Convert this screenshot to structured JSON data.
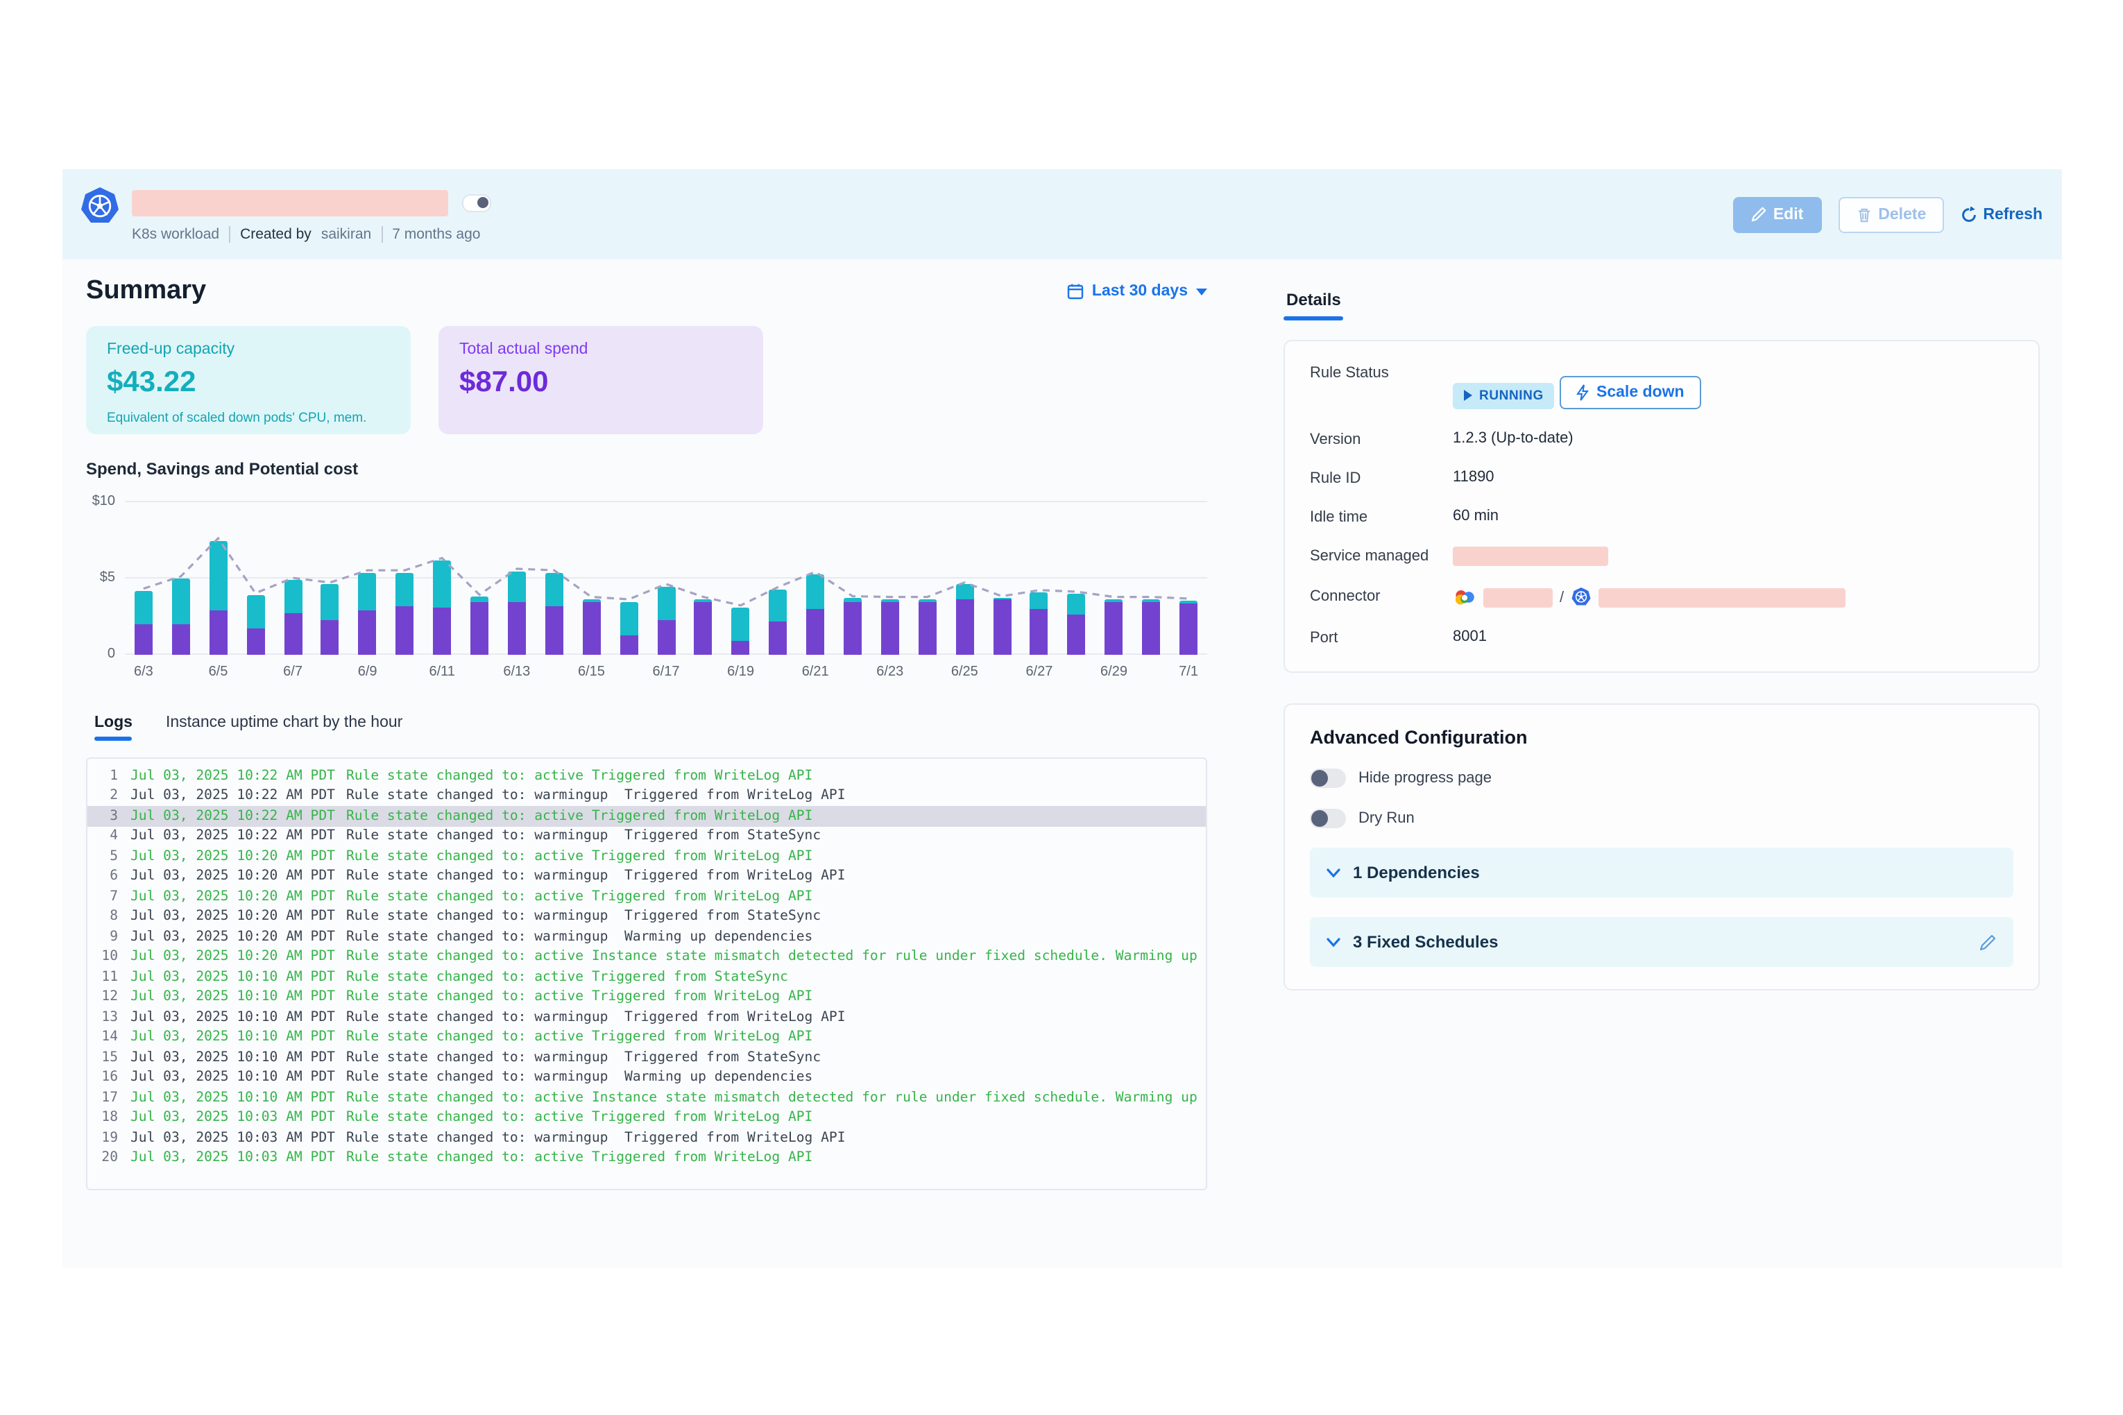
{
  "header": {
    "workload_type": "K8s workload",
    "created_by_label": "Created by",
    "created_by": "saikiran",
    "created_ago": "7 months ago",
    "edit_label": "Edit",
    "delete_label": "Delete",
    "refresh_label": "Refresh"
  },
  "summary": {
    "title": "Summary",
    "date_range": "Last 30 days",
    "cards": [
      {
        "label": "Freed-up capacity",
        "value": "$43.22",
        "caption": "Equivalent of scaled down pods' CPU, mem."
      },
      {
        "label": "Total actual spend",
        "value": "$87.00",
        "caption": ""
      }
    ]
  },
  "chart_data": {
    "type": "bar",
    "subtype": "stacked-bars-with-dashed-line",
    "title": "Spend, Savings and Potential cost",
    "ylabel": "",
    "xlabel": "",
    "ylim": [
      0,
      10
    ],
    "y_ticks": [
      "$10",
      "$5",
      "0"
    ],
    "x_tick_every": 2,
    "grid": true,
    "categories": [
      "6/3",
      "6/4",
      "6/5",
      "6/6",
      "6/7",
      "6/8",
      "6/9",
      "6/10",
      "6/11",
      "6/12",
      "6/13",
      "6/14",
      "6/15",
      "6/16",
      "6/17",
      "6/18",
      "6/19",
      "6/20",
      "6/21",
      "6/22",
      "6/23",
      "6/24",
      "6/25",
      "6/26",
      "6/27",
      "6/28",
      "6/29",
      "6/30",
      "7/1"
    ],
    "series": [
      {
        "name": "Spend",
        "color": "#7343D0",
        "values": [
          2.0,
          2.0,
          2.9,
          1.7,
          2.7,
          2.3,
          2.9,
          3.2,
          3.1,
          3.5,
          3.5,
          3.2,
          3.5,
          1.3,
          2.3,
          3.5,
          0.9,
          2.2,
          3.0,
          3.5,
          3.5,
          3.5,
          3.6,
          3.6,
          3.0,
          2.6,
          3.5,
          3.5,
          3.4
        ]
      },
      {
        "name": "Savings",
        "color": "#18BCCA",
        "values": [
          2.2,
          3.0,
          4.6,
          2.2,
          2.2,
          2.3,
          2.5,
          2.2,
          3.1,
          0.3,
          2.0,
          2.2,
          0.15,
          2.2,
          2.2,
          0.15,
          2.2,
          2.1,
          2.3,
          0.2,
          0.15,
          0.15,
          1.0,
          0.1,
          1.1,
          1.4,
          0.15,
          0.15,
          0.15
        ]
      }
    ],
    "line": {
      "name": "Potential cost",
      "style": "dashed",
      "color": "#A7A2C4",
      "values": [
        4.2,
        5.0,
        7.5,
        3.9,
        4.9,
        4.6,
        5.4,
        5.4,
        6.2,
        3.8,
        5.5,
        5.4,
        3.65,
        3.5,
        4.5,
        3.65,
        3.1,
        4.3,
        5.3,
        3.7,
        3.65,
        3.65,
        4.6,
        3.7,
        4.1,
        4.0,
        3.65,
        3.65,
        3.55
      ]
    }
  },
  "tabs": {
    "logs": "Logs",
    "uptime": "Instance uptime chart by the hour"
  },
  "logs": [
    {
      "n": "1",
      "time": "Jul 03, 2025 10:22 AM PDT",
      "msg": "Rule state changed to: active Triggered from WriteLog API",
      "state": "active",
      "highlight": false
    },
    {
      "n": "2",
      "time": "Jul 03, 2025 10:22 AM PDT",
      "msg": "Rule state changed to: warmingup  Triggered from WriteLog API",
      "state": "warmingup",
      "highlight": false
    },
    {
      "n": "3",
      "time": "Jul 03, 2025 10:22 AM PDT",
      "msg": "Rule state changed to: active Triggered from WriteLog API",
      "state": "active",
      "highlight": true
    },
    {
      "n": "4",
      "time": "Jul 03, 2025 10:22 AM PDT",
      "msg": "Rule state changed to: warmingup  Triggered from StateSync",
      "state": "warmingup",
      "highlight": false
    },
    {
      "n": "5",
      "time": "Jul 03, 2025 10:20 AM PDT",
      "msg": "Rule state changed to: active Triggered from WriteLog API",
      "state": "active",
      "highlight": false
    },
    {
      "n": "6",
      "time": "Jul 03, 2025 10:20 AM PDT",
      "msg": "Rule state changed to: warmingup  Triggered from WriteLog API",
      "state": "warmingup",
      "highlight": false
    },
    {
      "n": "7",
      "time": "Jul 03, 2025 10:20 AM PDT",
      "msg": "Rule state changed to: active Triggered from WriteLog API",
      "state": "active",
      "highlight": false
    },
    {
      "n": "8",
      "time": "Jul 03, 2025 10:20 AM PDT",
      "msg": "Rule state changed to: warmingup  Triggered from StateSync",
      "state": "warmingup",
      "highlight": false
    },
    {
      "n": "9",
      "time": "Jul 03, 2025 10:20 AM PDT",
      "msg": "Rule state changed to: warmingup  Warming up dependencies",
      "state": "warmingup",
      "highlight": false
    },
    {
      "n": "10",
      "time": "Jul 03, 2025 10:20 AM PDT",
      "msg": "Rule state changed to: active Instance state mismatch detected for rule under fixed schedule. Warming up",
      "state": "active",
      "highlight": false
    },
    {
      "n": "11",
      "time": "Jul 03, 2025 10:10 AM PDT",
      "msg": "Rule state changed to: active Triggered from StateSync",
      "state": "active",
      "highlight": false
    },
    {
      "n": "12",
      "time": "Jul 03, 2025 10:10 AM PDT",
      "msg": "Rule state changed to: active Triggered from WriteLog API",
      "state": "active",
      "highlight": false
    },
    {
      "n": "13",
      "time": "Jul 03, 2025 10:10 AM PDT",
      "msg": "Rule state changed to: warmingup  Triggered from WriteLog API",
      "state": "warmingup",
      "highlight": false
    },
    {
      "n": "14",
      "time": "Jul 03, 2025 10:10 AM PDT",
      "msg": "Rule state changed to: active Triggered from WriteLog API",
      "state": "active",
      "highlight": false
    },
    {
      "n": "15",
      "time": "Jul 03, 2025 10:10 AM PDT",
      "msg": "Rule state changed to: warmingup  Triggered from StateSync",
      "state": "warmingup",
      "highlight": false
    },
    {
      "n": "16",
      "time": "Jul 03, 2025 10:10 AM PDT",
      "msg": "Rule state changed to: warmingup  Warming up dependencies",
      "state": "warmingup",
      "highlight": false
    },
    {
      "n": "17",
      "time": "Jul 03, 2025 10:10 AM PDT",
      "msg": "Rule state changed to: active Instance state mismatch detected for rule under fixed schedule. Warming up",
      "state": "active",
      "highlight": false
    },
    {
      "n": "18",
      "time": "Jul 03, 2025 10:03 AM PDT",
      "msg": "Rule state changed to: active Triggered from WriteLog API",
      "state": "active",
      "highlight": false
    },
    {
      "n": "19",
      "time": "Jul 03, 2025 10:03 AM PDT",
      "msg": "Rule state changed to: warmingup  Triggered from WriteLog API",
      "state": "warmingup",
      "highlight": false
    },
    {
      "n": "20",
      "time": "Jul 03, 2025 10:03 AM PDT",
      "msg": "Rule state changed to: active Triggered from WriteLog API",
      "state": "active",
      "highlight": false
    }
  ],
  "details": {
    "tab_label": "Details",
    "rule_status_label": "Rule Status",
    "running_badge": "RUNNING",
    "scale_down_label": "Scale down",
    "version_label": "Version",
    "version_value": "1.2.3 (Up-to-date)",
    "rule_id_label": "Rule ID",
    "rule_id_value": "11890",
    "idle_label": "Idle time",
    "idle_value": "60 min",
    "service_label": "Service managed",
    "connector_label": "Connector",
    "connector_separator": "/",
    "port_label": "Port",
    "port_value": "8001"
  },
  "advanced": {
    "title": "Advanced Configuration",
    "toggles": [
      {
        "label": "Hide progress page",
        "on": false
      },
      {
        "label": "Dry Run",
        "on": false
      }
    ],
    "dependencies_label": "1 Dependencies",
    "schedules_label": "3 Fixed Schedules"
  },
  "colors": {
    "accent_blue": "#1A73E8",
    "header_band": "#E8F6FB",
    "teal": "#14AEBC",
    "purple": "#6C2BD9",
    "bar_purple": "#7343D0",
    "bar_teal": "#18BCCA",
    "line_dashed": "#A7A2C4",
    "log_green": "#35B44A",
    "redaction_pink": "#F9D2CE",
    "running_badge_bg": "#C7EAF9",
    "running_badge_text": "#1565C0"
  }
}
